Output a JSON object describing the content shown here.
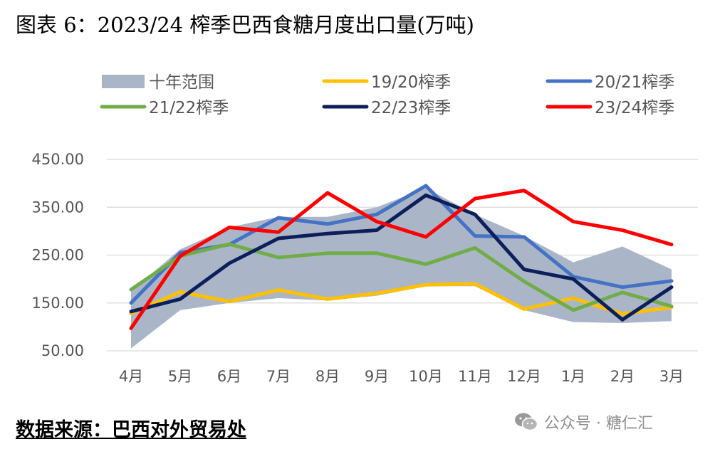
{
  "header": {
    "title": "图表 6：2023/24 榨季巴西食糖月度出口量(万吨)"
  },
  "footer": {
    "source": "数据来源：巴西对外贸易处"
  },
  "watermark": {
    "text": "公众号 · 糖仁汇",
    "icon": "wechat-icon"
  },
  "colors": {
    "band": "#aab6c8",
    "s1920": "#ffc000",
    "s2021": "#4472c4",
    "s2122": "#70ad47",
    "s2223": "#0c1f5b",
    "s2324": "#ff0000",
    "grid": "#d9d9d9"
  },
  "chart_data": {
    "type": "line",
    "title": "图表 6：2023/24 榨季巴西食糖月度出口量(万吨)",
    "xlabel": "",
    "ylabel": "",
    "categories": [
      "4月",
      "5月",
      "6月",
      "7月",
      "8月",
      "9月",
      "10月",
      "11月",
      "12月",
      "1月",
      "2月",
      "3月"
    ],
    "yticks": [
      "450.00",
      "350.00",
      "250.00",
      "150.00",
      "50.00"
    ],
    "ylim": [
      50,
      450
    ],
    "grid": true,
    "legend_position": "top",
    "band": {
      "name": "十年范围",
      "upper": [
        175,
        262,
        308,
        330,
        330,
        350,
        390,
        335,
        290,
        235,
        268,
        220
      ],
      "lower": [
        55,
        135,
        150,
        160,
        155,
        165,
        185,
        185,
        135,
        110,
        108,
        112
      ]
    },
    "series": [
      {
        "name": "19/20榨季",
        "key": "s1920",
        "values": [
          128,
          173,
          153,
          177,
          158,
          170,
          188,
          190,
          137,
          160,
          127,
          141
        ]
      },
      {
        "name": "20/21榨季",
        "key": "s2021",
        "values": [
          150,
          255,
          272,
          328,
          315,
          335,
          395,
          290,
          288,
          205,
          183,
          196
        ]
      },
      {
        "name": "21/22榨季",
        "key": "s2122",
        "values": [
          178,
          248,
          273,
          245,
          254,
          254,
          231,
          265,
          195,
          135,
          172,
          143
        ]
      },
      {
        "name": "22/23榨季",
        "key": "s2223",
        "values": [
          132,
          158,
          233,
          285,
          295,
          302,
          375,
          335,
          220,
          200,
          115,
          183
        ]
      },
      {
        "name": "23/24榨季",
        "key": "s2324",
        "values": [
          97,
          248,
          308,
          298,
          380,
          320,
          288,
          368,
          385,
          320,
          302,
          272
        ]
      }
    ]
  }
}
